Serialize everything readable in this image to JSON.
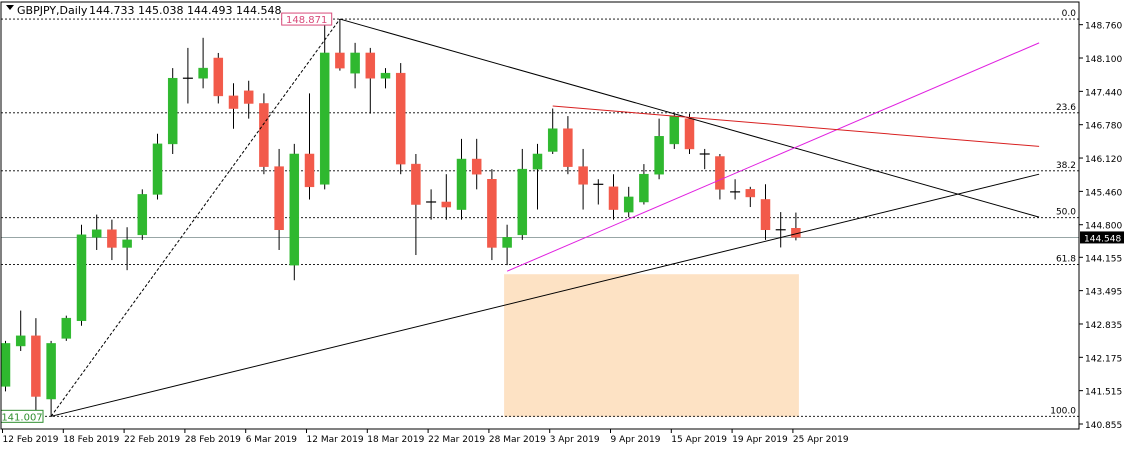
{
  "header": {
    "symbol_label": "GBPJPY,Daily",
    "ohlc_label": "144.733 145.038 144.493 144.548"
  },
  "colors": {
    "bull": "#2fb82f",
    "bear": "#f25a4a",
    "trend_magenta": "#e020e0",
    "trend_red": "#d82020",
    "zone_fill": "#fde2c4",
    "text": "#000000"
  },
  "chart_data": {
    "type": "candlestick",
    "ylim": [
      140.855,
      149.09
    ],
    "y_ticks": [
      "148.760",
      "148.100",
      "147.440",
      "146.780",
      "146.120",
      "145.460",
      "144.800",
      "144.155",
      "143.495",
      "142.835",
      "142.175",
      "141.515",
      "140.855"
    ],
    "x_ticks": [
      {
        "label": "12 Feb 2019",
        "index": 0
      },
      {
        "label": "18 Feb 2019",
        "index": 4
      },
      {
        "label": "22 Feb 2019",
        "index": 8
      },
      {
        "label": "28 Feb 2019",
        "index": 12
      },
      {
        "label": "6 Mar 2019",
        "index": 16
      },
      {
        "label": "12 Mar 2019",
        "index": 20
      },
      {
        "label": "18 Mar 2019",
        "index": 24
      },
      {
        "label": "22 Mar 2019",
        "index": 28
      },
      {
        "label": "28 Mar 2019",
        "index": 32
      },
      {
        "label": "3 Apr 2019",
        "index": 36
      },
      {
        "label": "9 Apr 2019",
        "index": 40
      },
      {
        "label": "15 Apr 2019",
        "index": 44
      },
      {
        "label": "19 Apr 2019",
        "index": 48
      },
      {
        "label": "25 Apr 2019",
        "index": 52
      }
    ],
    "candles": [
      {
        "o": 141.6,
        "h": 142.5,
        "l": 141.5,
        "c": 142.45
      },
      {
        "o": 142.4,
        "h": 143.1,
        "l": 142.3,
        "c": 142.6
      },
      {
        "o": 142.6,
        "h": 142.95,
        "l": 140.95,
        "c": 141.4
      },
      {
        "o": 141.35,
        "h": 142.5,
        "l": 141.0,
        "c": 142.45
      },
      {
        "o": 142.55,
        "h": 143.0,
        "l": 142.5,
        "c": 142.95
      },
      {
        "o": 142.9,
        "h": 144.8,
        "l": 142.8,
        "c": 144.6
      },
      {
        "o": 144.55,
        "h": 145.0,
        "l": 144.3,
        "c": 144.7
      },
      {
        "o": 144.7,
        "h": 144.9,
        "l": 144.1,
        "c": 144.35
      },
      {
        "o": 144.35,
        "h": 144.75,
        "l": 143.9,
        "c": 144.5
      },
      {
        "o": 144.6,
        "h": 145.5,
        "l": 144.5,
        "c": 145.4
      },
      {
        "o": 145.4,
        "h": 146.6,
        "l": 145.3,
        "c": 146.4
      },
      {
        "o": 146.4,
        "h": 147.9,
        "l": 146.2,
        "c": 147.7
      },
      {
        "o": 147.7,
        "h": 148.3,
        "l": 147.2,
        "c": 147.7
      },
      {
        "o": 147.7,
        "h": 148.5,
        "l": 147.5,
        "c": 147.9
      },
      {
        "o": 148.1,
        "h": 148.2,
        "l": 147.2,
        "c": 147.35
      },
      {
        "o": 147.35,
        "h": 147.6,
        "l": 146.7,
        "c": 147.1
      },
      {
        "o": 147.45,
        "h": 147.65,
        "l": 146.9,
        "c": 147.2
      },
      {
        "o": 147.2,
        "h": 147.4,
        "l": 145.8,
        "c": 145.95
      },
      {
        "o": 145.95,
        "h": 146.3,
        "l": 144.3,
        "c": 144.7
      },
      {
        "o": 144.0,
        "h": 146.4,
        "l": 143.7,
        "c": 146.2
      },
      {
        "o": 146.2,
        "h": 147.4,
        "l": 145.3,
        "c": 145.55
      },
      {
        "o": 145.6,
        "h": 148.8,
        "l": 145.5,
        "c": 148.2
      },
      {
        "o": 148.2,
        "h": 148.87,
        "l": 147.85,
        "c": 147.9
      },
      {
        "o": 147.8,
        "h": 148.4,
        "l": 147.5,
        "c": 148.2
      },
      {
        "o": 148.2,
        "h": 148.3,
        "l": 147.0,
        "c": 147.7
      },
      {
        "o": 147.7,
        "h": 147.9,
        "l": 147.5,
        "c": 147.8
      },
      {
        "o": 147.8,
        "h": 148.0,
        "l": 145.8,
        "c": 146.0
      },
      {
        "o": 146.0,
        "h": 146.2,
        "l": 144.2,
        "c": 145.2
      },
      {
        "o": 145.2,
        "h": 145.5,
        "l": 144.9,
        "c": 145.25
      },
      {
        "o": 145.25,
        "h": 145.8,
        "l": 144.9,
        "c": 145.15
      },
      {
        "o": 145.1,
        "h": 146.5,
        "l": 144.9,
        "c": 146.1
      },
      {
        "o": 146.1,
        "h": 146.5,
        "l": 145.5,
        "c": 145.8
      },
      {
        "o": 145.7,
        "h": 145.9,
        "l": 144.1,
        "c": 144.35
      },
      {
        "o": 144.35,
        "h": 144.8,
        "l": 144.0,
        "c": 144.55
      },
      {
        "o": 144.6,
        "h": 146.3,
        "l": 144.5,
        "c": 145.9
      },
      {
        "o": 145.9,
        "h": 146.4,
        "l": 145.1,
        "c": 146.2
      },
      {
        "o": 146.25,
        "h": 147.1,
        "l": 146.2,
        "c": 146.7
      },
      {
        "o": 146.7,
        "h": 146.95,
        "l": 145.8,
        "c": 145.95
      },
      {
        "o": 145.95,
        "h": 146.3,
        "l": 145.1,
        "c": 145.6
      },
      {
        "o": 145.6,
        "h": 145.7,
        "l": 145.2,
        "c": 145.6
      },
      {
        "o": 145.55,
        "h": 145.8,
        "l": 144.9,
        "c": 145.1
      },
      {
        "o": 145.05,
        "h": 145.55,
        "l": 144.95,
        "c": 145.35
      },
      {
        "o": 145.25,
        "h": 146.0,
        "l": 145.2,
        "c": 145.8
      },
      {
        "o": 145.8,
        "h": 146.9,
        "l": 145.7,
        "c": 146.55
      },
      {
        "o": 146.4,
        "h": 147.0,
        "l": 146.3,
        "c": 146.95
      },
      {
        "o": 146.9,
        "h": 147.0,
        "l": 146.2,
        "c": 146.3
      },
      {
        "o": 146.2,
        "h": 146.3,
        "l": 145.9,
        "c": 146.2
      },
      {
        "o": 146.15,
        "h": 146.2,
        "l": 145.3,
        "c": 145.5
      },
      {
        "o": 145.45,
        "h": 145.7,
        "l": 145.3,
        "c": 145.45
      },
      {
        "o": 145.5,
        "h": 145.55,
        "l": 145.15,
        "c": 145.35
      },
      {
        "o": 145.3,
        "h": 145.6,
        "l": 144.5,
        "c": 144.7
      },
      {
        "o": 144.7,
        "h": 145.05,
        "l": 144.35,
        "c": 144.7
      },
      {
        "o": 144.73,
        "h": 145.04,
        "l": 144.49,
        "c": 144.55
      }
    ],
    "current_price": 144.548,
    "current_price_label": "144.548",
    "fibonacci": {
      "high": 148.871,
      "low": 141.007,
      "levels": [
        {
          "ratio": 0.0,
          "label": "0.0"
        },
        {
          "ratio": 0.236,
          "label": "23.6"
        },
        {
          "ratio": 0.382,
          "label": "38.2"
        },
        {
          "ratio": 0.5,
          "label": "50.0"
        },
        {
          "ratio": 0.618,
          "label": "61.8"
        },
        {
          "ratio": 1.0,
          "label": "100.0"
        }
      ],
      "high_label": "148.871",
      "low_label": "141.007"
    },
    "trendlines": [
      {
        "name": "fib-base",
        "style": "dashed",
        "color": "#000000",
        "from": {
          "index": 3,
          "price": 141.007
        },
        "to": {
          "index": 22,
          "price": 148.871
        }
      },
      {
        "name": "descending-black",
        "style": "solid",
        "color": "#000000",
        "from": {
          "index": 22,
          "price": 148.871
        },
        "to": {
          "index": 68,
          "price": 144.95
        }
      },
      {
        "name": "rising-support",
        "style": "solid",
        "color": "#000000",
        "from": {
          "index": 3,
          "price": 141.007
        },
        "to": {
          "index": 68,
          "price": 145.8
        }
      },
      {
        "name": "rising-magenta",
        "style": "solid",
        "color": "#e020e0",
        "from": {
          "index": 33,
          "price": 143.88
        },
        "to": {
          "index": 68,
          "price": 148.4
        }
      },
      {
        "name": "resistance-red",
        "style": "solid",
        "color": "#d82020",
        "from": {
          "index": 36,
          "price": 147.15
        },
        "to": {
          "index": 68,
          "price": 146.35
        }
      }
    ],
    "zone": {
      "from_index": 33,
      "to_index": 52,
      "top": 143.82,
      "bottom": 141.0
    }
  }
}
